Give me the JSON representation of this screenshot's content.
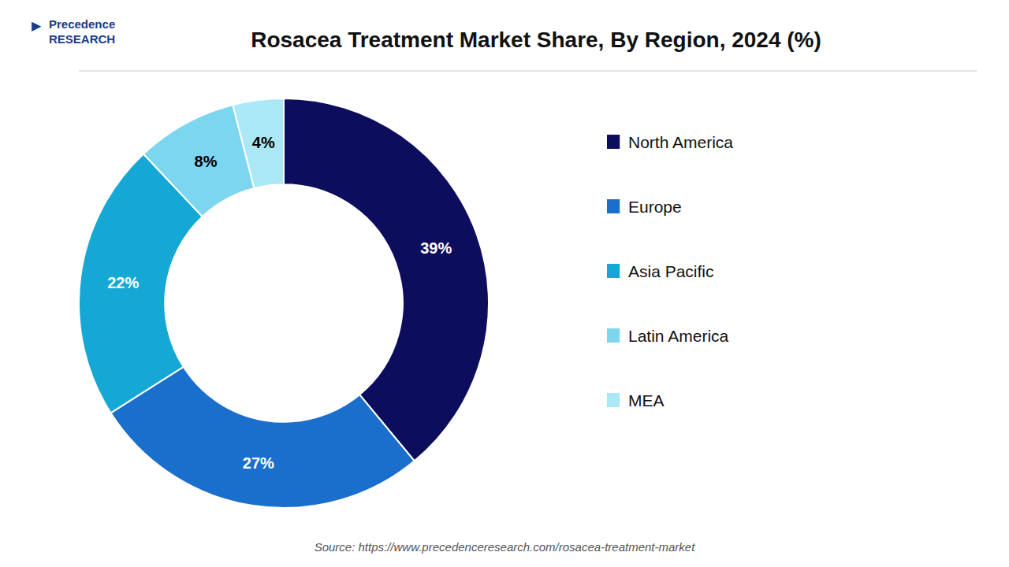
{
  "chart_data": {
    "type": "pie",
    "title": "Rosacea Treatment Market Share, By Region, 2024 (%)",
    "categories": [
      "North America",
      "Europe",
      "Asia Pacific",
      "Latin America",
      "MEA"
    ],
    "values": [
      39,
      27,
      22,
      8,
      4
    ],
    "value_labels": [
      "39%",
      "27%",
      "22%",
      "8%",
      "4%"
    ],
    "colors": [
      "#0d0d5e",
      "#1a6fcc",
      "#15a8d4",
      "#7dd6ef",
      "#aae8f5"
    ],
    "data_labels": true,
    "legend": "right",
    "annotations": [
      "Source: https://www.precedenceresearch.com/rosacea-treatment-market",
      "Precedence\nRESEARCH",
      "▶"
    ]
  }
}
